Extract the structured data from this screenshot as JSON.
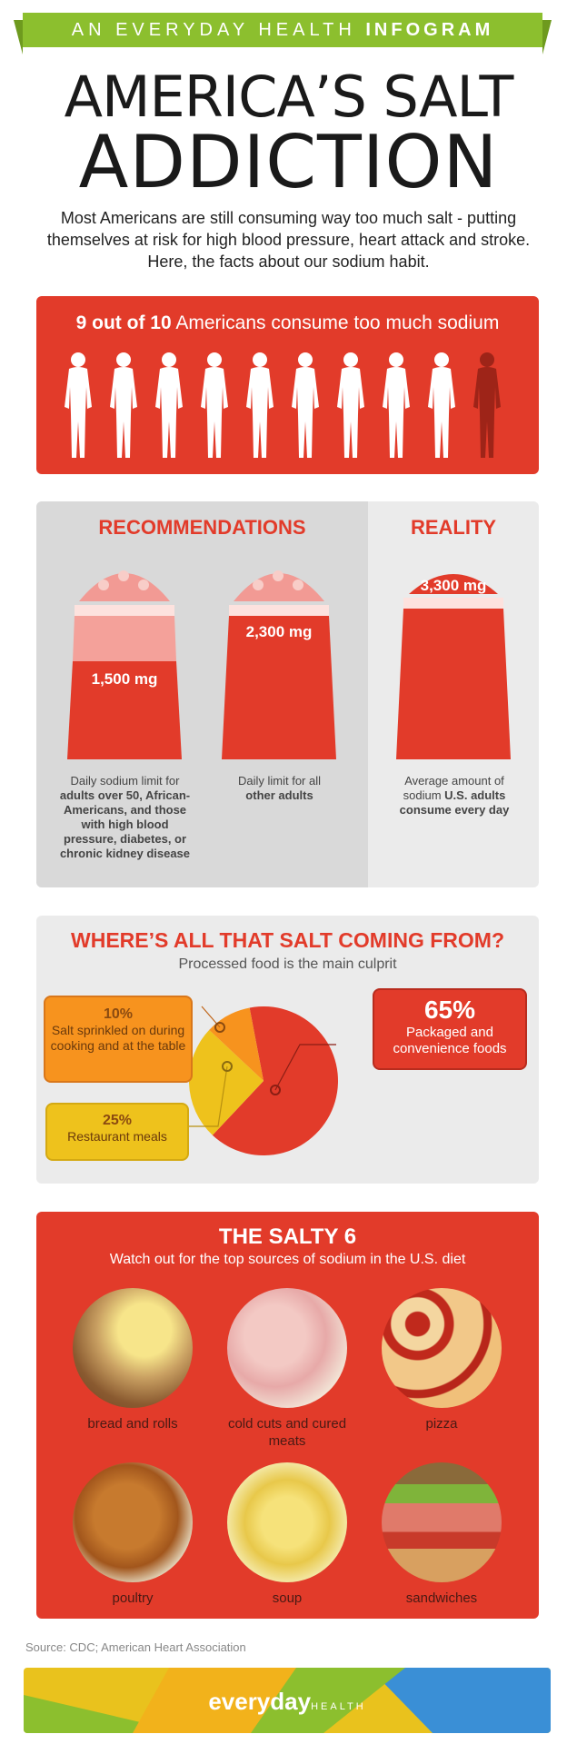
{
  "banner": {
    "prefix": "AN EVERYDAY HEALTH",
    "emphasis": "INFOGRAM"
  },
  "title": {
    "line1": "AMERICA’S SALT",
    "line2": "ADDICTION"
  },
  "intro": "Most Americans are still consuming way too much salt - putting themselves at risk for high blood pressure, heart attack and stroke. Here, the facts about our sodium habit.",
  "stat": {
    "emphasis": "9 out of 10",
    "rest": "Americans consume too much sodium",
    "people_total": 10,
    "people_highlighted": 9
  },
  "recommendations": {
    "heading": "RECOMMENDATIONS",
    "shaker1": {
      "amount": "1,500 mg",
      "caption_pre": "Daily sodium limit for",
      "caption_bold": "adults over 50, African-Americans, and those with high blood pressure, diabetes, or chronic kidney disease"
    },
    "shaker2": {
      "amount": "2,300 mg",
      "caption_pre": "Daily limit for all",
      "caption_bold": "other adults"
    }
  },
  "reality": {
    "heading": "REALITY",
    "amount": "3,300 mg",
    "caption_pre": "Average amount of sodium",
    "caption_bold": "U.S. adults consume every day"
  },
  "sources": {
    "title": "WHERE’S ALL THAT SALT COMING FROM?",
    "subtitle": "Processed food is the main culprit",
    "slices": [
      {
        "pct": "10%",
        "label": "Salt sprinkled on during cooking and at the table",
        "color": "#f7931e"
      },
      {
        "pct": "25%",
        "label": "Restaurant meals",
        "color": "#eec21c"
      },
      {
        "pct": "65%",
        "label": "Packaged and convenience foods",
        "color": "#e23b2a"
      }
    ]
  },
  "salty6": {
    "title": "THE SALTY 6",
    "subtitle": "Watch out for the top sources of sodium in the U.S. diet",
    "items": [
      {
        "label": "bread and rolls"
      },
      {
        "label": "cold cuts and cured meats"
      },
      {
        "label": "pizza"
      },
      {
        "label": "poultry"
      },
      {
        "label": "soup"
      },
      {
        "label": "sandwiches"
      }
    ]
  },
  "source_note": "Source: CDC; American Heart Association",
  "footer": {
    "brand": "everyday",
    "brand_suffix": "HEALTH"
  },
  "colors": {
    "red": "#e23b2a",
    "green": "#8cbf2e",
    "orange": "#f7931e",
    "yellow": "#eec21c",
    "gray": "#ebebeb"
  }
}
